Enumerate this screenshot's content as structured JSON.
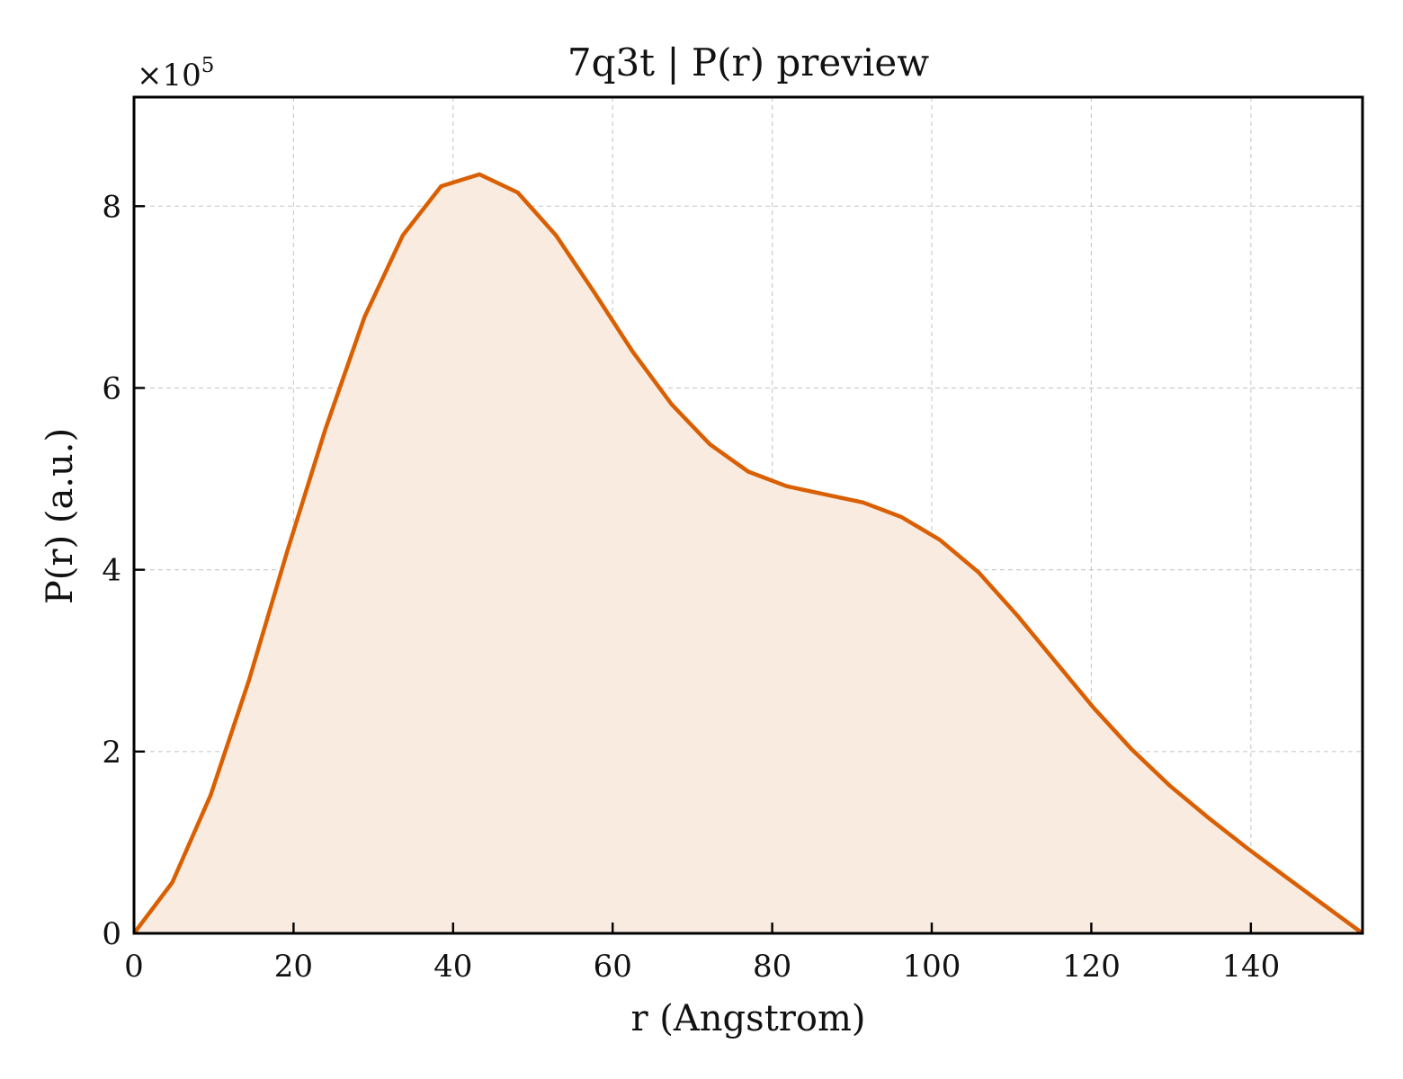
{
  "chart_data": {
    "type": "area",
    "title": "7q3t | P(r) preview",
    "xlabel": "r (Angstrom)",
    "ylabel": "P(r) (a.u.)",
    "y_multiplier": "×10",
    "y_multiplier_exp": "5",
    "xlim": [
      0,
      154
    ],
    "ylim": [
      0,
      9.2
    ],
    "x_ticks": [
      "0",
      "20",
      "40",
      "60",
      "80",
      "100",
      "120",
      "140"
    ],
    "y_ticks": [
      "0",
      "2",
      "4",
      "6",
      "8"
    ],
    "grid": true,
    "line_color": "#d95f02",
    "fill_color": "#f9ebe0",
    "series": [
      {
        "x": [
          0,
          4.8,
          9.6,
          14.4,
          19.2,
          24.0,
          28.9,
          33.7,
          38.5,
          43.3,
          48.1,
          52.9,
          57.7,
          62.5,
          67.4,
          72.2,
          77.0,
          81.8,
          86.6,
          91.4,
          96.2,
          101.0,
          105.9,
          110.7,
          115.5,
          120.3,
          125.1,
          129.9,
          134.7,
          139.5,
          144.4,
          149.2,
          154.0
        ],
        "values": [
          0,
          0.56,
          1.52,
          2.78,
          4.2,
          5.55,
          6.78,
          7.68,
          8.22,
          8.35,
          8.15,
          7.68,
          7.05,
          6.4,
          5.82,
          5.38,
          5.08,
          4.92,
          4.83,
          4.74,
          4.58,
          4.33,
          3.97,
          3.5,
          2.99,
          2.48,
          2.02,
          1.62,
          1.27,
          0.94,
          0.62,
          0.31,
          0
        ]
      }
    ]
  }
}
